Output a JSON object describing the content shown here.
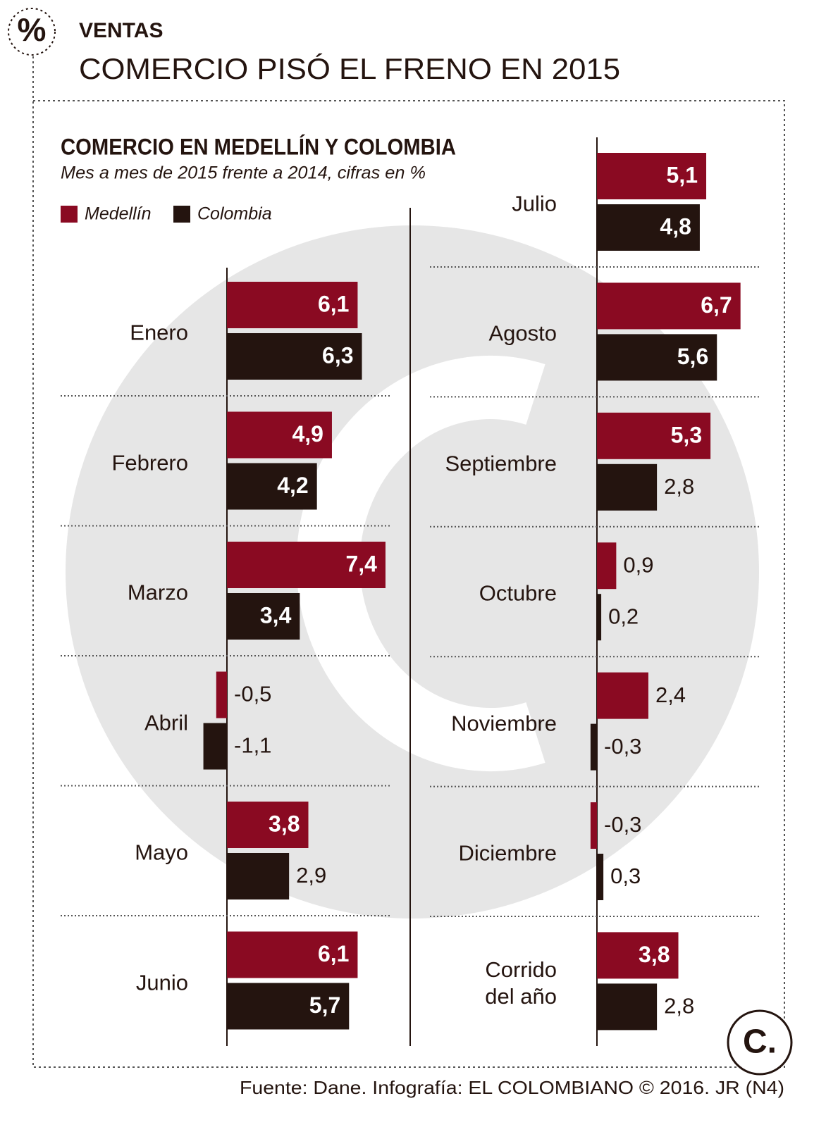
{
  "header": {
    "icon": "%",
    "kicker": "VENTAS",
    "title": "COMERCIO PISÓ EL FRENO EN 2015"
  },
  "chart_data": {
    "type": "bar",
    "orientation": "horizontal",
    "title": "COMERCIO EN MEDELLÍN Y COLOMBIA",
    "subtitle": "Mes a mes de 2015 frente a 2014, cifras en %",
    "categories": [
      "Enero",
      "Febrero",
      "Marzo",
      "Abril",
      "Mayo",
      "Junio",
      "Julio",
      "Agosto",
      "Septiembre",
      "Octubre",
      "Noviembre",
      "Diciembre",
      "Corrido del año"
    ],
    "series": [
      {
        "name": "Medellín",
        "color": "#8a0a22",
        "values": [
          6.1,
          4.9,
          7.4,
          -0.5,
          3.8,
          6.1,
          5.1,
          6.7,
          5.3,
          0.9,
          2.4,
          -0.3,
          3.8
        ],
        "value_labels": [
          "6,1",
          "4,9",
          "7,4",
          "-0,5",
          "3,8",
          "6,1",
          "5,1",
          "6,7",
          "5,3",
          "0,9",
          "2,4",
          "-0,3",
          "3,8"
        ]
      },
      {
        "name": "Colombia",
        "color": "#24140f",
        "values": [
          6.3,
          4.2,
          3.4,
          -1.1,
          2.9,
          5.7,
          4.8,
          5.6,
          2.8,
          0.2,
          -0.3,
          0.3,
          2.8
        ],
        "value_labels": [
          "6,3",
          "4,2",
          "3,4",
          "-1,1",
          "2,9",
          "5,7",
          "4,8",
          "5,6",
          "2,8",
          "0,2",
          "-0,3",
          "0,3",
          "2,8"
        ]
      }
    ]
  },
  "footer": {
    "source": "Fuente: Dane. Infografía: EL COLOMBIANO © 2016. JR (N4)",
    "logo": "C."
  }
}
